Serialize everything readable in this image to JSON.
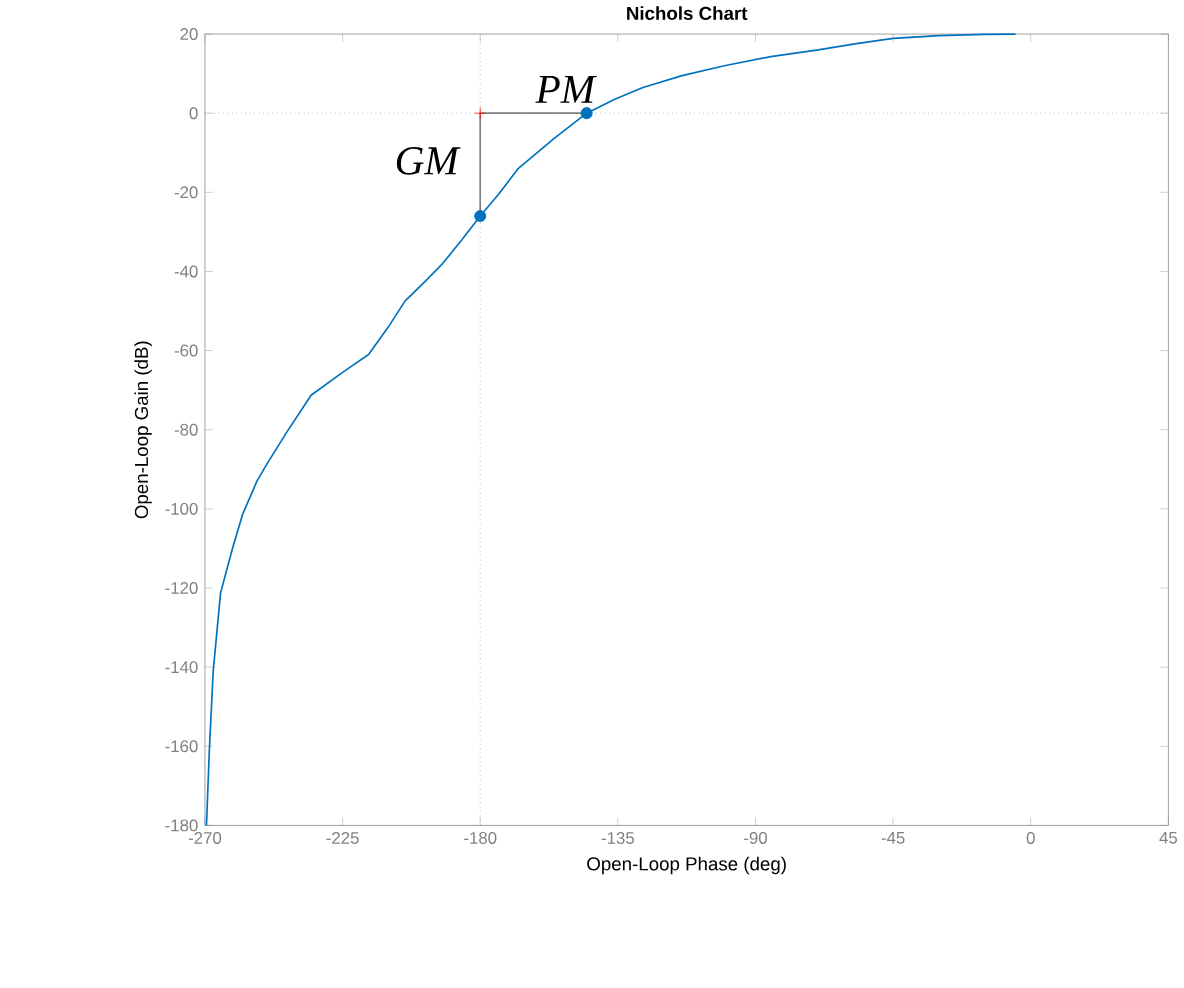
{
  "chart_data": {
    "type": "line",
    "title": "Nichols Chart",
    "xlabel": "Open-Loop Phase (deg)",
    "ylabel": "Open-Loop Gain (dB)",
    "xlim": [
      -270,
      45
    ],
    "ylim": [
      -180,
      20
    ],
    "xticks": [
      -270,
      -225,
      -180,
      -135,
      -90,
      -45,
      0,
      45
    ],
    "yticks": [
      -180,
      -160,
      -140,
      -120,
      -100,
      -80,
      -60,
      -40,
      -20,
      0,
      20
    ],
    "series": [
      {
        "color": "#0072bd",
        "x": [
          -269.5,
          -268.6,
          -267.3,
          -264.9,
          -261,
          -257.7,
          -253,
          -250,
          -243.4,
          -235.3,
          -225,
          -216.5,
          -210,
          -204.6,
          -198,
          -192.3,
          -186,
          -180,
          -174,
          -167.7,
          -156,
          -145.2,
          -136,
          -126.8,
          -114,
          -100.2,
          -85,
          -69.5,
          -57,
          -45,
          -30,
          -15,
          -5
        ],
        "values": [
          -180,
          -161.8,
          -141,
          -121.3,
          -110,
          -101.4,
          -93,
          -89,
          -80.8,
          -71.3,
          -65.5,
          -61,
          -54,
          -47.5,
          -42.5,
          -38,
          -32,
          -26,
          -20.5,
          -14.1,
          -6.5,
          0,
          3.5,
          6.5,
          9.5,
          12,
          14.3,
          16,
          17.6,
          18.9,
          19.6,
          19.9,
          20
        ]
      },
      {
        "type": "line",
        "color": "#808080",
        "x": [
          -180,
          -180,
          -145.2
        ],
        "values": [
          -26,
          0,
          0
        ]
      },
      {
        "type": "scatter",
        "marker": "circle",
        "color": "#0072bd",
        "x": [
          -180,
          -145.2
        ],
        "values": [
          -26,
          0
        ]
      },
      {
        "type": "scatter",
        "marker": "cross",
        "color": "#ff0000",
        "x": [
          -180
        ],
        "values": [
          0
        ]
      }
    ],
    "ref_lines": [
      {
        "axis": "x",
        "value": -180,
        "color": "#808080",
        "line_style": "dotted"
      },
      {
        "axis": "y",
        "value": 0,
        "color": "#808080",
        "line_style": "dotted"
      }
    ],
    "annotations": [
      {
        "text": "GM",
        "x": -180,
        "y": -26
      },
      {
        "text": "PM",
        "x": -145.2,
        "y": 0
      }
    ]
  }
}
